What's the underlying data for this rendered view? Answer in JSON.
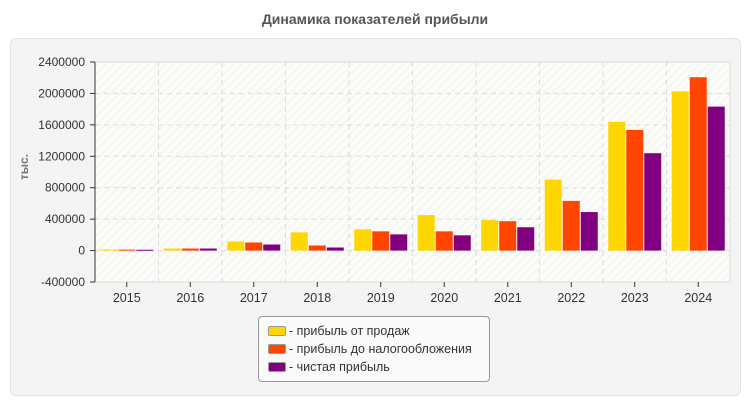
{
  "chart_data": {
    "type": "bar",
    "title": "Динамика показателей прибыли",
    "ylabel": "тыс.",
    "xlabel": "",
    "ylim": [
      -400000,
      2400000
    ],
    "yticks": [
      "2400000",
      "2000000",
      "1600000",
      "1200000",
      "800000",
      "400000",
      "0",
      "-400000"
    ],
    "grid": true,
    "legend_position": "bottom",
    "categories": [
      "2015",
      "2016",
      "2017",
      "2018",
      "2019",
      "2020",
      "2021",
      "2022",
      "2023",
      "2024"
    ],
    "series": [
      {
        "name": "прибыль от продаж",
        "color": "#ffd700",
        "values": [
          13000,
          26000,
          116000,
          232000,
          271000,
          452000,
          387000,
          903000,
          1639000,
          2026000
        ]
      },
      {
        "name": "прибыль до налогообложения",
        "color": "#ff4500",
        "values": [
          12000,
          26000,
          103000,
          65000,
          245000,
          245000,
          374000,
          632000,
          1535000,
          2206000
        ]
      },
      {
        "name": "чистая прибыль",
        "color": "#800080",
        "values": [
          10000,
          26000,
          77000,
          39000,
          206000,
          194000,
          297000,
          490000,
          1239000,
          1832000
        ]
      }
    ]
  }
}
